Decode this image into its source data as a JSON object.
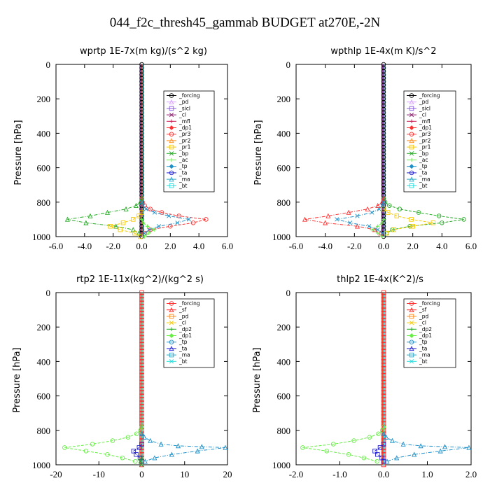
{
  "title": "044_f2c_thresh45_gammab  BUDGET at270E,-2N",
  "colors": {
    "forcing": "#000000",
    "forcing_b": "#ff2a2a",
    "sf": "#ff2a2a",
    "pd": "#d8a0ff",
    "sicl": "#8a5ad8",
    "cl": "#8b1a6b",
    "cl_b": "#f6c900",
    "mfl": "#c81e50",
    "dp1": "#ff3030",
    "pr3": "#ff3030",
    "pr2": "#ff8c1a",
    "pr1": "#f6c900",
    "bp": "#22aa22",
    "ac": "#66ee44",
    "tp": "#1e90c8",
    "ta": "#2020d0",
    "ma": "#2aa8c8",
    "bt": "#22dddd",
    "dp2": "#22aa22",
    "dp1_b": "#66ee44",
    "pd_b": "#ff8c1a"
  },
  "chart_data": [
    {
      "type": "line",
      "title": "wprtp   1E-7x(m kg)/(s^2 kg)",
      "ylabel": "Pressure [hPa]",
      "xlim": [
        -6,
        6
      ],
      "ylim": [
        1000,
        0
      ],
      "xticks": [
        "-6.0",
        "-4.0",
        "-2.0",
        "0.0",
        "2.0",
        "4.0",
        "6.0"
      ],
      "yticks": [
        "0",
        "200",
        "400",
        "600",
        "800",
        "1000"
      ],
      "legend": [
        "_forcing",
        "_pd",
        "_sicl",
        "_cl",
        "_mfl",
        "_dp1",
        "_pr3",
        "_pr2",
        "_pr1",
        "_bp",
        "_ac",
        "_tp",
        "_ta",
        "_ma",
        "_bt"
      ],
      "series": [
        {
          "name": "_dp1",
          "x": [
            0,
            0.05,
            0.2,
            0.6,
            1.4,
            2.6,
            4.5,
            3.6,
            2.0,
            0.6,
            0.2
          ],
          "y": [
            780,
            800,
            820,
            840,
            860,
            880,
            900,
            920,
            940,
            960,
            980
          ]
        },
        {
          "name": "_bp",
          "x": [
            0,
            -0.1,
            -0.4,
            -1.1,
            -2.4,
            -3.6,
            -5.2,
            -3.9,
            -1.8,
            -0.6,
            -0.2
          ],
          "y": [
            780,
            800,
            820,
            840,
            860,
            880,
            900,
            920,
            940,
            960,
            980
          ]
        },
        {
          "name": "_pr1",
          "x": [
            0,
            -0.2,
            -0.6,
            -1.3,
            -2.2,
            -1.5,
            -0.5,
            -0.1
          ],
          "y": [
            860,
            880,
            900,
            920,
            940,
            960,
            980,
            1000
          ]
        },
        {
          "name": "_tp",
          "x": [
            0,
            0.1,
            0.3,
            0.9,
            1.9,
            3.3,
            2.5,
            1.2,
            0.5,
            0.2
          ],
          "y": [
            800,
            820,
            840,
            860,
            880,
            900,
            920,
            940,
            960,
            980
          ]
        },
        {
          "name": "_ac",
          "x": [
            0,
            0.1,
            0.4,
            0.9,
            0.5,
            0.2
          ],
          "y": [
            900,
            920,
            940,
            960,
            980,
            1000
          ]
        }
      ]
    },
    {
      "type": "line",
      "title": "wpthlp   1E-4x(m K)/s^2",
      "ylabel": "Pressure [hPa]",
      "xlim": [
        -6,
        6
      ],
      "ylim": [
        1000,
        0
      ],
      "xticks": [
        "-6.0",
        "-4.0",
        "-2.0",
        "0.0",
        "2.0",
        "4.0",
        "6.0"
      ],
      "yticks": [
        "0",
        "200",
        "400",
        "600",
        "800",
        "1000"
      ],
      "legend": [
        "_forcing",
        "_pd",
        "_sicl",
        "_cl",
        "_mfl",
        "_dp1",
        "_pr3",
        "_pr2",
        "_pr1",
        "_bp",
        "_ac",
        "_tp",
        "_ta",
        "_ma",
        "_bt"
      ],
      "series": [
        {
          "name": "_bp",
          "x": [
            0,
            0.1,
            0.4,
            1.1,
            2.4,
            3.8,
            5.5,
            4.0,
            1.8,
            0.6,
            0.2
          ],
          "y": [
            780,
            800,
            820,
            840,
            860,
            880,
            900,
            920,
            940,
            960,
            980
          ]
        },
        {
          "name": "_dp1",
          "x": [
            0,
            -0.1,
            -0.4,
            -1.1,
            -2.4,
            -3.8,
            -5.4,
            -4.0,
            -1.8,
            -0.6,
            -0.2
          ],
          "y": [
            780,
            800,
            820,
            840,
            860,
            880,
            900,
            920,
            940,
            960,
            980
          ]
        },
        {
          "name": "_pr1",
          "x": [
            0,
            0.3,
            0.9,
            1.9,
            3.4,
            2.0,
            0.7,
            0.2
          ],
          "y": [
            840,
            860,
            880,
            900,
            920,
            940,
            960,
            980
          ]
        },
        {
          "name": "_tp",
          "x": [
            0,
            -0.1,
            -0.3,
            -0.8,
            -1.8,
            -3.2,
            -2.3,
            -1.0,
            -0.4,
            -0.1
          ],
          "y": [
            800,
            820,
            840,
            860,
            880,
            900,
            920,
            940,
            960,
            980
          ]
        },
        {
          "name": "_ac",
          "x": [
            0,
            -0.1,
            -0.4,
            -0.8,
            -0.4,
            -0.1
          ],
          "y": [
            900,
            920,
            940,
            960,
            980,
            1000
          ]
        }
      ]
    },
    {
      "type": "line",
      "title": "rtp2   1E-11x(kg^2)/(kg^2 s)",
      "ylabel": "Pressure [hPa]",
      "xlim": [
        -20,
        20
      ],
      "ylim": [
        1000,
        0
      ],
      "xticks": [
        "-20",
        "-10",
        "0",
        "10",
        "20"
      ],
      "yticks": [
        "0",
        "200",
        "400",
        "600",
        "800",
        "1000"
      ],
      "legend": [
        "_forcing",
        "_sf",
        "_pd",
        "_cl",
        "_dp2",
        "_dp1",
        "_tp",
        "_ta",
        "_ma",
        "_bt"
      ],
      "series": [
        {
          "name": "_dp1",
          "x": [
            0,
            -0.3,
            -1.2,
            -3.2,
            -6.8,
            -11.5,
            -18.0,
            -13.0,
            -8.0,
            -4.5,
            -1.5
          ],
          "y": [
            780,
            800,
            820,
            840,
            860,
            880,
            900,
            920,
            940,
            960,
            980
          ]
        },
        {
          "name": "_tp",
          "x": [
            0,
            0.6,
            2.0,
            4.5,
            8.5,
            14.0,
            19.5,
            13.0,
            7.0,
            3.0,
            0.8
          ],
          "y": [
            820,
            840,
            860,
            880,
            890,
            895,
            900,
            920,
            940,
            960,
            980
          ]
        },
        {
          "name": "_ta",
          "x": [
            0,
            -0.6,
            -1.9,
            -1.3,
            -0.4,
            0
          ],
          "y": [
            880,
            900,
            920,
            940,
            960,
            980
          ]
        },
        {
          "name": "_dp2",
          "x": [
            0,
            -0.3,
            -0.1
          ],
          "y": [
            960,
            980,
            1000
          ]
        }
      ]
    },
    {
      "type": "line",
      "title": "thlp2   1E-4x(K^2)/s",
      "ylabel": "Pressure [hPa]",
      "xlim": [
        -2,
        2
      ],
      "ylim": [
        1000,
        0
      ],
      "xticks": [
        "-2.0",
        "-1.0",
        "0.0",
        "1.0",
        "2.0"
      ],
      "yticks": [
        "0",
        "200",
        "400",
        "600",
        "800",
        "1000"
      ],
      "legend": [
        "_forcing",
        "_sf",
        "_pd",
        "_cl",
        "_dp2",
        "_dp1",
        "_tp",
        "_ta",
        "_ma",
        "_bt"
      ],
      "series": [
        {
          "name": "_dp1",
          "x": [
            0,
            -0.03,
            -0.12,
            -0.32,
            -0.68,
            -1.15,
            -1.85,
            -1.3,
            -0.8,
            -0.45,
            -0.15
          ],
          "y": [
            780,
            800,
            820,
            840,
            860,
            880,
            900,
            920,
            940,
            960,
            980
          ]
        },
        {
          "name": "_tp",
          "x": [
            0,
            0.06,
            0.2,
            0.45,
            0.85,
            1.4,
            1.95,
            1.3,
            0.7,
            0.3,
            0.08
          ],
          "y": [
            820,
            840,
            860,
            880,
            890,
            895,
            900,
            920,
            940,
            960,
            980
          ]
        },
        {
          "name": "_ta",
          "x": [
            0,
            -0.08,
            -0.2,
            -0.14,
            -0.04,
            0
          ],
          "y": [
            880,
            900,
            920,
            940,
            960,
            980
          ]
        }
      ]
    }
  ]
}
